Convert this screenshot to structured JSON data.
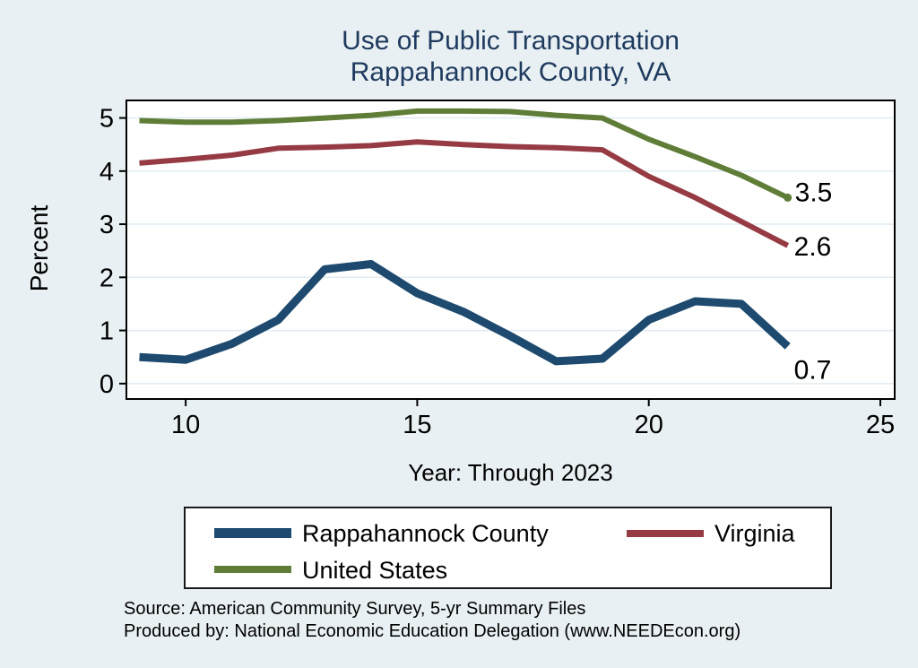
{
  "title": {
    "line1": "Use of Public Transportation",
    "line2": "Rappahannock County, VA"
  },
  "axes": {
    "y_title": "Percent",
    "x_title": "Year: Through 2023"
  },
  "colors": {
    "background": "#e9f0f3",
    "plot_background": "#ffffff",
    "grid": "#e0ecf2",
    "axis": "#000000",
    "title_text": "#1e3a5e"
  },
  "legend": {
    "items": [
      {
        "label": "Rappahannock County",
        "color": "#1d4a6e",
        "thickness": 11
      },
      {
        "label": "Virginia",
        "color": "#963b44",
        "thickness": 8
      },
      {
        "label": "United States",
        "color": "#5f7d37",
        "thickness": 8
      }
    ]
  },
  "footer": {
    "source": "Source: American Community Survey, 5-yr Summary Files",
    "produced_by": "Produced by: National Economic Education Delegation (www.NEEDEcon.org)"
  },
  "chart_data": {
    "type": "line",
    "title": "Use of Public Transportation — Rappahannock County, VA",
    "xlabel": "Year: Through 2023",
    "ylabel": "Percent",
    "x": [
      9,
      10,
      11,
      12,
      13,
      14,
      15,
      16,
      17,
      18,
      19,
      20,
      21,
      22,
      23
    ],
    "xticks": [
      10,
      15,
      20,
      25
    ],
    "yticks": [
      0,
      1,
      2,
      3,
      4,
      5
    ],
    "xlim": [
      8.72,
      25.31
    ],
    "ylim": [
      -0.29,
      5.33
    ],
    "grid": "horizontal",
    "legend_position": "bottom",
    "series": [
      {
        "name": "Rappahannock County",
        "color": "#1d4a6e",
        "stroke_width": 9,
        "values": [
          0.5,
          0.45,
          0.75,
          1.2,
          2.15,
          2.25,
          1.7,
          1.35,
          0.9,
          0.42,
          0.47,
          1.2,
          1.55,
          1.5,
          0.7
        ],
        "end_label": "0.7",
        "end_label_offset": [
          7,
          36
        ],
        "end_marker": false
      },
      {
        "name": "Virginia",
        "color": "#963b44",
        "stroke_width": 6,
        "values": [
          4.15,
          4.22,
          4.3,
          4.43,
          4.45,
          4.48,
          4.55,
          4.5,
          4.46,
          4.44,
          4.4,
          3.9,
          3.5,
          3.05,
          2.6
        ],
        "end_label": "2.6",
        "end_label_offset": [
          7,
          11
        ],
        "end_marker": false
      },
      {
        "name": "United States",
        "color": "#5f7d37",
        "stroke_width": 6,
        "values": [
          4.95,
          4.92,
          4.92,
          4.95,
          5.0,
          5.05,
          5.13,
          5.13,
          5.12,
          5.05,
          5.0,
          4.6,
          4.27,
          3.92,
          3.5
        ],
        "end_label": "3.5",
        "end_label_offset": [
          8,
          4
        ],
        "end_marker": true
      }
    ]
  }
}
